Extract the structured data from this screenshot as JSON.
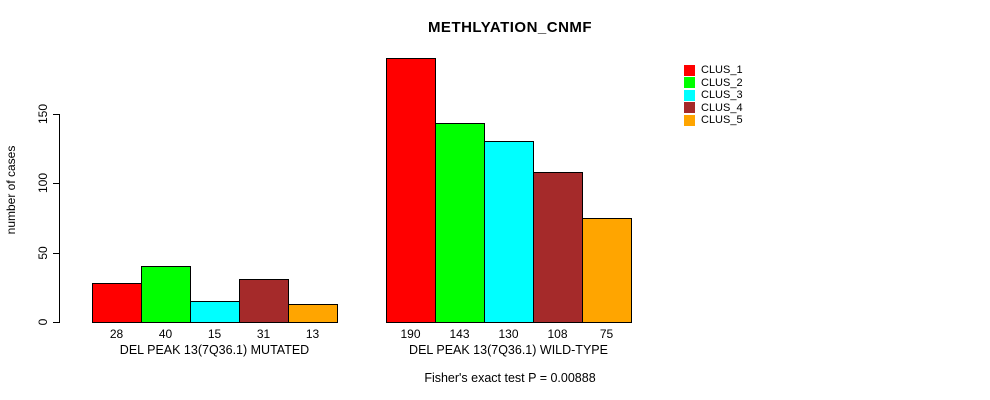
{
  "chart_data": {
    "type": "bar",
    "title": "METHLYATION_CNMF",
    "ylabel": "number of cases",
    "xlabel": "",
    "yticks": [
      0,
      50,
      100,
      150
    ],
    "ylim": [
      0,
      195
    ],
    "grid": false,
    "legend_position": "top-right",
    "categories": [
      "DEL PEAK 13(7Q36.1) MUTATED",
      "DEL PEAK 13(7Q36.1) WILD-TYPE"
    ],
    "groups": [
      {
        "label": "DEL PEAK 13(7Q36.1) MUTATED",
        "values": [
          28,
          40,
          15,
          31,
          13
        ]
      },
      {
        "label": "DEL PEAK 13(7Q36.1) WILD-TYPE",
        "values": [
          190,
          143,
          130,
          108,
          75
        ]
      }
    ],
    "series": [
      {
        "name": "CLUS_1",
        "color": "#FF0000",
        "values": [
          28,
          190
        ]
      },
      {
        "name": "CLUS_2",
        "color": "#00FF00",
        "values": [
          40,
          143
        ]
      },
      {
        "name": "CLUS_3",
        "color": "#00FFFF",
        "values": [
          15,
          130
        ]
      },
      {
        "name": "CLUS_4",
        "color": "#A52A2A",
        "values": [
          31,
          108
        ]
      },
      {
        "name": "CLUS_5",
        "color": "#FFA500",
        "values": [
          13,
          75
        ]
      }
    ],
    "series_colors": [
      "#FF0000",
      "#00FF00",
      "#00FFFF",
      "#A52A2A",
      "#FFA500"
    ],
    "legend_entries": [
      "CLUS_1",
      "CLUS_2",
      "CLUS_3",
      "CLUS_4",
      "CLUS_5"
    ],
    "annotation": "Fisher's exact test P = 0.00888"
  }
}
